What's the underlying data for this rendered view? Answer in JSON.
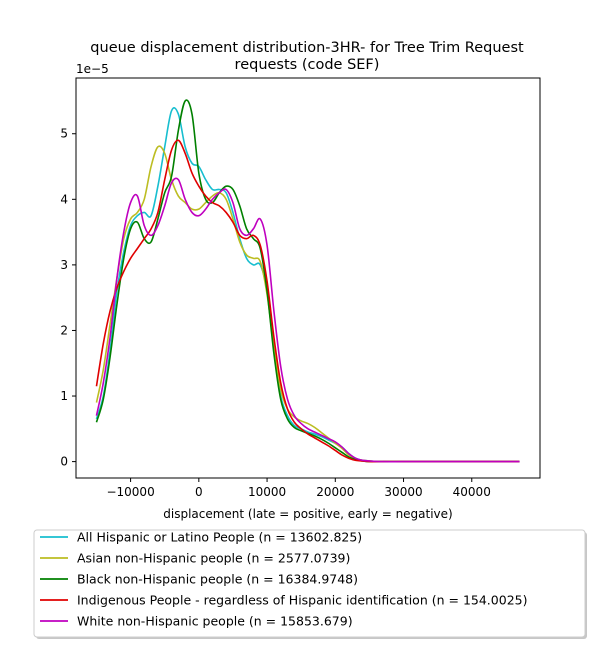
{
  "chart_data": {
    "type": "line",
    "title": "queue displacement distribution-3HR-  for Tree Trim Request\nrequests (code SEF)",
    "xlabel": "displacement (late = positive, early = negative)",
    "ylabel": "",
    "y_offset_label": "1e−5",
    "xlim": [
      -18000,
      50000
    ],
    "ylim": [
      -0.25,
      5.85
    ],
    "x_ticks": [
      -10000,
      0,
      10000,
      20000,
      30000,
      40000
    ],
    "x_tick_labels": [
      "−10000",
      "0",
      "10000",
      "20000",
      "30000",
      "40000"
    ],
    "y_ticks": [
      0,
      1,
      2,
      3,
      4,
      5
    ],
    "y_tick_labels": [
      "0",
      "1",
      "2",
      "3",
      "4",
      "5"
    ],
    "grid": false,
    "legend_position": "below",
    "series": [
      {
        "name": "All Hispanic or Latino People (n = 13602.825)",
        "color": "#17becf",
        "x": [
          -15000,
          -14000,
          -13000,
          -12000,
          -11000,
          -10000,
          -9000,
          -8000,
          -7000,
          -6000,
          -5000,
          -4000,
          -3000,
          -2000,
          -1000,
          0,
          1000,
          2000,
          3000,
          4000,
          5000,
          6000,
          7000,
          8000,
          9000,
          10000,
          11000,
          12000,
          13000,
          14000,
          15000,
          16000,
          17000,
          18000,
          19000,
          20000,
          21000,
          22000,
          23000,
          24000,
          25000,
          27000,
          30000,
          35000,
          40000,
          45000,
          47000
        ],
        "y": [
          0.65,
          1.0,
          1.7,
          2.6,
          3.2,
          3.6,
          3.75,
          3.8,
          3.75,
          4.2,
          4.8,
          5.35,
          5.3,
          4.8,
          4.55,
          4.5,
          4.3,
          4.15,
          4.15,
          4.1,
          3.8,
          3.4,
          3.1,
          3.0,
          3.0,
          2.6,
          1.7,
          1.0,
          0.7,
          0.55,
          0.5,
          0.45,
          0.42,
          0.38,
          0.33,
          0.28,
          0.22,
          0.12,
          0.05,
          0.02,
          0.01,
          0.0,
          0.0,
          0.0,
          0.0,
          0.0,
          0.0
        ]
      },
      {
        "name": "Asian non-Hispanic people (n = 2577.0739)",
        "color": "#bcbd22",
        "x": [
          -15000,
          -14000,
          -13000,
          -12000,
          -11000,
          -10000,
          -9000,
          -8000,
          -7000,
          -6000,
          -5000,
          -4000,
          -3000,
          -2000,
          -1000,
          0,
          1000,
          2000,
          3000,
          4000,
          5000,
          6000,
          7000,
          8000,
          9000,
          10000,
          11000,
          12000,
          13000,
          14000,
          15000,
          16000,
          17000,
          18000,
          19000,
          20000,
          21000,
          22000,
          23000,
          24000,
          25000,
          27000,
          30000,
          35000,
          40000,
          45000,
          47000
        ],
        "y": [
          0.9,
          1.4,
          2.1,
          2.8,
          3.4,
          3.7,
          3.8,
          4.0,
          4.5,
          4.8,
          4.7,
          4.3,
          4.05,
          3.95,
          3.85,
          3.85,
          3.95,
          4.05,
          4.1,
          4.0,
          3.7,
          3.35,
          3.15,
          3.1,
          3.05,
          2.55,
          1.75,
          1.1,
          0.8,
          0.68,
          0.62,
          0.58,
          0.52,
          0.44,
          0.36,
          0.28,
          0.2,
          0.1,
          0.04,
          0.02,
          0.01,
          0.0,
          0.0,
          0.0,
          0.0,
          0.0,
          0.0
        ]
      },
      {
        "name": "Black non-Hispanic people (n = 16384.9748)",
        "color": "#008000",
        "x": [
          -15000,
          -14000,
          -13000,
          -12000,
          -11000,
          -10000,
          -9000,
          -8000,
          -7000,
          -6000,
          -5000,
          -4000,
          -3000,
          -2000,
          -1000,
          0,
          1000,
          2000,
          3000,
          4000,
          5000,
          6000,
          7000,
          8000,
          9000,
          10000,
          11000,
          12000,
          13000,
          14000,
          15000,
          16000,
          17000,
          18000,
          19000,
          20000,
          21000,
          22000,
          23000,
          24000,
          25000,
          27000,
          30000,
          35000,
          40000,
          45000,
          47000
        ],
        "y": [
          0.6,
          0.95,
          1.6,
          2.4,
          3.1,
          3.55,
          3.65,
          3.4,
          3.35,
          3.7,
          4.1,
          4.35,
          5.05,
          5.5,
          5.3,
          4.4,
          4.0,
          3.95,
          4.1,
          4.2,
          4.15,
          3.9,
          3.55,
          3.4,
          3.25,
          2.6,
          1.65,
          0.95,
          0.65,
          0.52,
          0.47,
          0.43,
          0.39,
          0.34,
          0.28,
          0.21,
          0.14,
          0.07,
          0.03,
          0.01,
          0.0,
          0.0,
          0.0,
          0.0,
          0.0,
          0.0,
          0.0
        ]
      },
      {
        "name": "Indigenous People - regardless of Hispanic identification (n = 154.0025)",
        "color": "#e00000",
        "x": [
          -15000,
          -14000,
          -13000,
          -12000,
          -11000,
          -10000,
          -9000,
          -8000,
          -7000,
          -6000,
          -5000,
          -4000,
          -3000,
          -2000,
          -1000,
          0,
          1000,
          2000,
          3000,
          4000,
          5000,
          6000,
          7000,
          8000,
          9000,
          10000,
          11000,
          12000,
          13000,
          14000,
          15000,
          16000,
          17000,
          18000,
          19000,
          20000,
          21000,
          22000,
          23000,
          24000,
          25000,
          27000,
          30000,
          35000,
          40000,
          45000,
          47000
        ],
        "y": [
          1.15,
          1.8,
          2.3,
          2.65,
          2.9,
          3.1,
          3.25,
          3.4,
          3.55,
          3.8,
          4.3,
          4.75,
          4.9,
          4.7,
          4.4,
          4.2,
          4.05,
          3.95,
          3.9,
          3.8,
          3.65,
          3.45,
          3.4,
          3.45,
          3.3,
          2.75,
          1.9,
          1.2,
          0.8,
          0.6,
          0.5,
          0.42,
          0.36,
          0.3,
          0.24,
          0.17,
          0.1,
          0.05,
          0.02,
          0.01,
          0.0,
          0.0,
          0.0,
          0.0,
          0.0,
          0.0,
          0.0
        ]
      },
      {
        "name": "White non-Hispanic people (n = 15853.679)",
        "color": "#bf00bf",
        "x": [
          -15000,
          -14000,
          -13000,
          -12000,
          -11000,
          -10000,
          -9000,
          -8000,
          -7000,
          -6000,
          -5000,
          -4000,
          -3000,
          -2000,
          -1000,
          0,
          1000,
          2000,
          3000,
          4000,
          5000,
          6000,
          7000,
          8000,
          9000,
          10000,
          11000,
          12000,
          13000,
          14000,
          15000,
          16000,
          17000,
          18000,
          19000,
          20000,
          21000,
          22000,
          23000,
          24000,
          25000,
          27000,
          30000,
          35000,
          40000,
          45000,
          47000
        ],
        "y": [
          0.7,
          1.2,
          1.9,
          2.8,
          3.5,
          3.95,
          4.05,
          3.6,
          3.45,
          3.6,
          3.9,
          4.25,
          4.3,
          4.0,
          3.8,
          3.75,
          3.85,
          4.0,
          4.1,
          4.15,
          3.95,
          3.55,
          3.45,
          3.55,
          3.7,
          3.3,
          2.3,
          1.45,
          0.95,
          0.7,
          0.58,
          0.5,
          0.45,
          0.4,
          0.35,
          0.3,
          0.22,
          0.12,
          0.05,
          0.02,
          0.01,
          0.0,
          0.0,
          0.0,
          0.0,
          0.0,
          0.0
        ]
      }
    ]
  }
}
